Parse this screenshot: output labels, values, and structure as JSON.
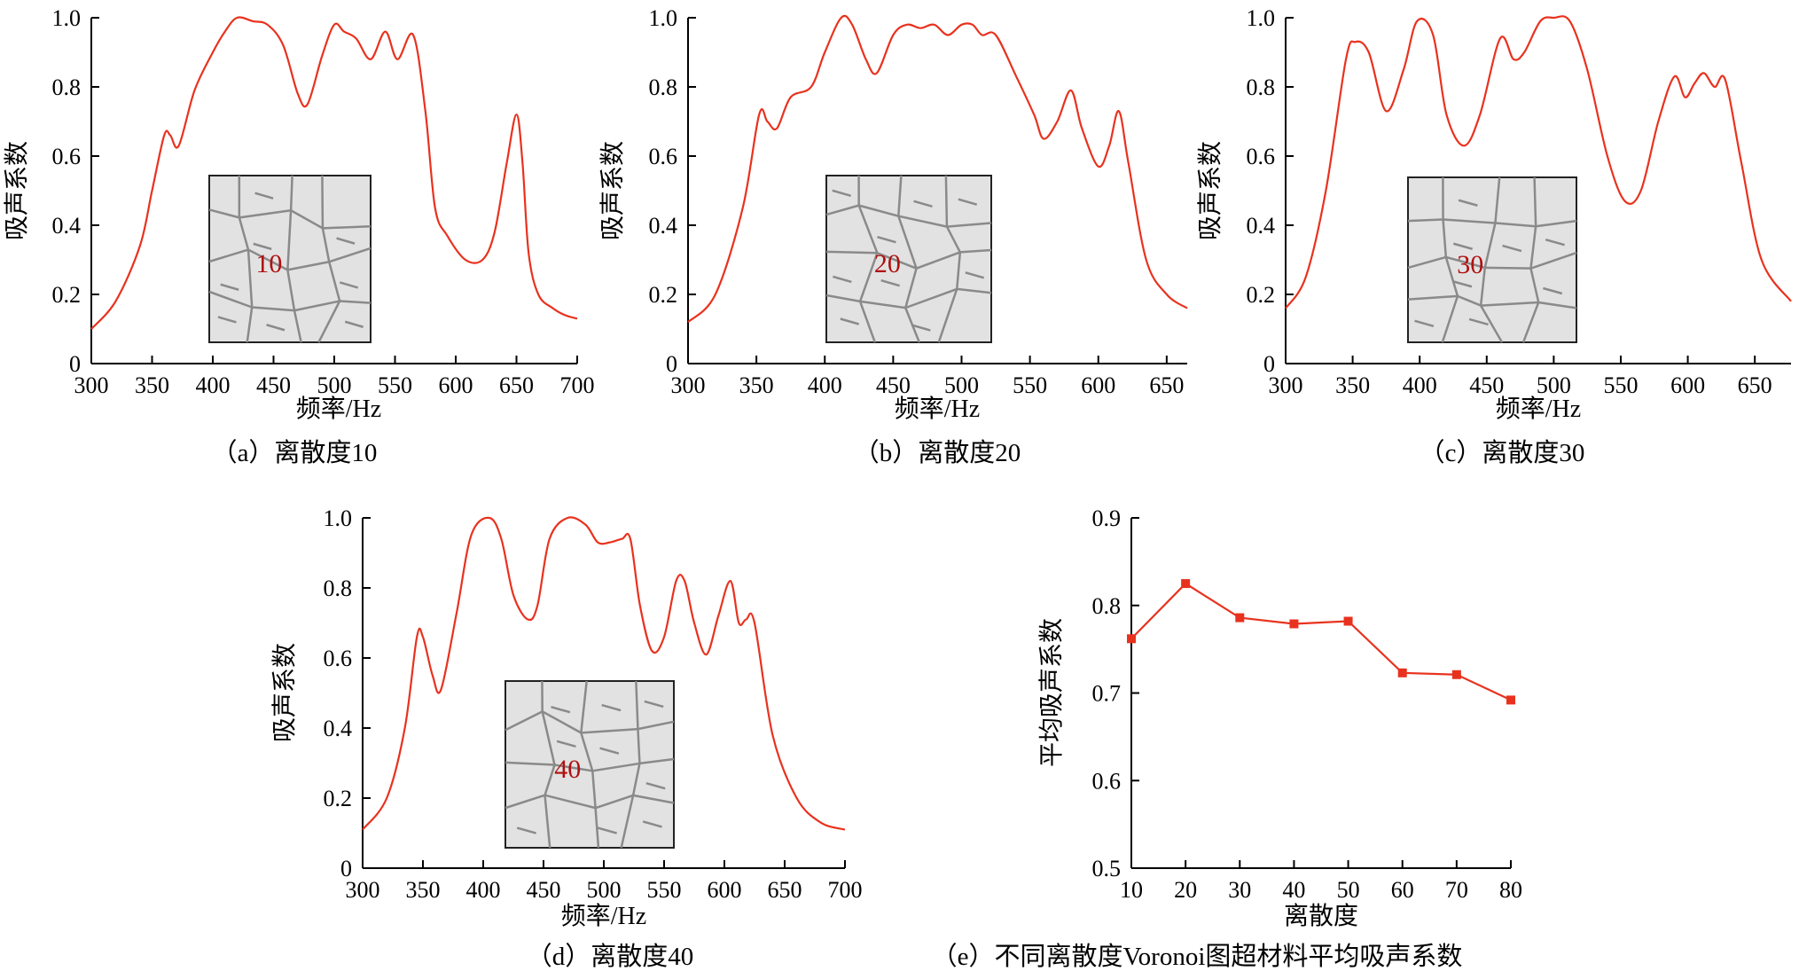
{
  "colors": {
    "curve": "#e8321e",
    "inset_fill": "#e2e2e2",
    "inset_edge": "#8a8a8a",
    "inset_text": "#b01010"
  },
  "chart_data": [
    {
      "type": "line",
      "caption": "（a）离散度10",
      "xlabel": "频率/Hz",
      "ylabel": "吸声系数",
      "xlim": [
        300,
        700
      ],
      "ylim": [
        0,
        1.0
      ],
      "xticks": [
        "300",
        "350",
        "400",
        "450",
        "500",
        "550",
        "600",
        "650",
        "700"
      ],
      "yticks": [
        "0",
        "0.2",
        "0.4",
        "0.6",
        "0.8",
        "1.0"
      ],
      "inset_label": "10",
      "x": [
        300,
        320,
        340,
        350,
        360,
        365,
        372,
        385,
        400,
        410,
        420,
        433,
        445,
        458,
        470,
        478,
        490,
        500,
        508,
        518,
        530,
        542,
        552,
        565,
        575,
        583,
        593,
        608,
        622,
        632,
        642,
        650,
        655,
        660,
        668,
        680,
        690,
        700
      ],
      "y": [
        0.1,
        0.18,
        0.34,
        0.5,
        0.66,
        0.66,
        0.63,
        0.79,
        0.9,
        0.96,
        1.0,
        0.99,
        0.98,
        0.92,
        0.78,
        0.75,
        0.89,
        0.98,
        0.96,
        0.94,
        0.88,
        0.96,
        0.88,
        0.95,
        0.73,
        0.45,
        0.37,
        0.3,
        0.3,
        0.38,
        0.58,
        0.72,
        0.58,
        0.32,
        0.2,
        0.16,
        0.14,
        0.13
      ]
    },
    {
      "type": "line",
      "caption": "（b）离散度20",
      "xlabel": "频率/Hz",
      "ylabel": "吸声系数",
      "xlim": [
        300,
        665
      ],
      "ylim": [
        0,
        1.0
      ],
      "xticks": [
        "300",
        "350",
        "400",
        "450",
        "500",
        "550",
        "600",
        "650"
      ],
      "yticks": [
        "0",
        "0.2",
        "0.4",
        "0.6",
        "0.8",
        "1.0"
      ],
      "inset_label": "20",
      "x": [
        300,
        320,
        340,
        352,
        358,
        365,
        375,
        390,
        400,
        412,
        420,
        430,
        438,
        450,
        460,
        470,
        480,
        490,
        500,
        508,
        515,
        525,
        540,
        553,
        560,
        570,
        580,
        588,
        600,
        608,
        615,
        622,
        635,
        650,
        665
      ],
      "y": [
        0.12,
        0.2,
        0.45,
        0.72,
        0.7,
        0.68,
        0.77,
        0.8,
        0.9,
        1.0,
        0.98,
        0.88,
        0.84,
        0.95,
        0.98,
        0.97,
        0.98,
        0.95,
        0.98,
        0.98,
        0.95,
        0.95,
        0.83,
        0.72,
        0.65,
        0.7,
        0.79,
        0.68,
        0.57,
        0.63,
        0.73,
        0.58,
        0.3,
        0.2,
        0.16
      ]
    },
    {
      "type": "line",
      "caption": "（c）离散度30",
      "xlabel": "频率/Hz",
      "ylabel": "吸声系数",
      "xlim": [
        300,
        677
      ],
      "ylim": [
        0,
        1.0
      ],
      "xticks": [
        "300",
        "350",
        "400",
        "450",
        "500",
        "550",
        "600",
        "650"
      ],
      "yticks": [
        "0",
        "0.2",
        "0.4",
        "0.6",
        "0.8",
        "1.0"
      ],
      "inset_label": "30",
      "x": [
        300,
        315,
        330,
        345,
        352,
        362,
        375,
        388,
        398,
        410,
        420,
        433,
        445,
        460,
        470,
        478,
        490,
        500,
        512,
        525,
        540,
        553,
        565,
        578,
        590,
        598,
        605,
        612,
        620,
        628,
        640,
        655,
        677
      ],
      "y": [
        0.16,
        0.25,
        0.5,
        0.88,
        0.93,
        0.9,
        0.73,
        0.85,
        0.99,
        0.95,
        0.72,
        0.63,
        0.72,
        0.94,
        0.88,
        0.9,
        0.99,
        1.0,
        0.99,
        0.85,
        0.6,
        0.47,
        0.5,
        0.7,
        0.83,
        0.77,
        0.81,
        0.84,
        0.8,
        0.82,
        0.58,
        0.3,
        0.18
      ]
    },
    {
      "type": "line",
      "caption": "（d）离散度40",
      "xlabel": "频率/Hz",
      "ylabel": "吸声系数",
      "xlim": [
        300,
        700
      ],
      "ylim": [
        0,
        1.0
      ],
      "xticks": [
        "300",
        "350",
        "400",
        "450",
        "500",
        "550",
        "600",
        "650",
        "700"
      ],
      "yticks": [
        "0",
        "0.2",
        "0.4",
        "0.6",
        "0.8",
        "1.0"
      ],
      "inset_label": "40",
      "x": [
        300,
        320,
        335,
        345,
        350,
        358,
        365,
        378,
        390,
        405,
        415,
        425,
        437,
        445,
        455,
        470,
        485,
        495,
        505,
        515,
        522,
        530,
        540,
        550,
        560,
        567,
        575,
        585,
        595,
        605,
        612,
        618,
        625,
        640,
        660,
        680,
        700
      ],
      "y": [
        0.11,
        0.2,
        0.4,
        0.66,
        0.66,
        0.55,
        0.51,
        0.73,
        0.95,
        1.0,
        0.94,
        0.78,
        0.71,
        0.75,
        0.94,
        1.0,
        0.98,
        0.93,
        0.93,
        0.94,
        0.94,
        0.75,
        0.62,
        0.66,
        0.82,
        0.82,
        0.7,
        0.61,
        0.72,
        0.82,
        0.7,
        0.71,
        0.7,
        0.38,
        0.2,
        0.13,
        0.11
      ]
    },
    {
      "type": "line",
      "caption": "（e）不同离散度Voronoi图超材料平均吸声系数",
      "xlabel": "离散度",
      "ylabel": "平均吸声系数",
      "xlim": [
        10,
        80
      ],
      "ylim": [
        0.5,
        0.9
      ],
      "xticks": [
        "10",
        "20",
        "30",
        "40",
        "50",
        "60",
        "70",
        "80"
      ],
      "yticks": [
        "0.5",
        "0.6",
        "0.7",
        "0.8",
        "0.9"
      ],
      "markers": true,
      "x": [
        10,
        20,
        30,
        40,
        50,
        60,
        70,
        80
      ],
      "y": [
        0.762,
        0.825,
        0.786,
        0.779,
        0.782,
        0.723,
        0.721,
        0.692
      ]
    }
  ]
}
